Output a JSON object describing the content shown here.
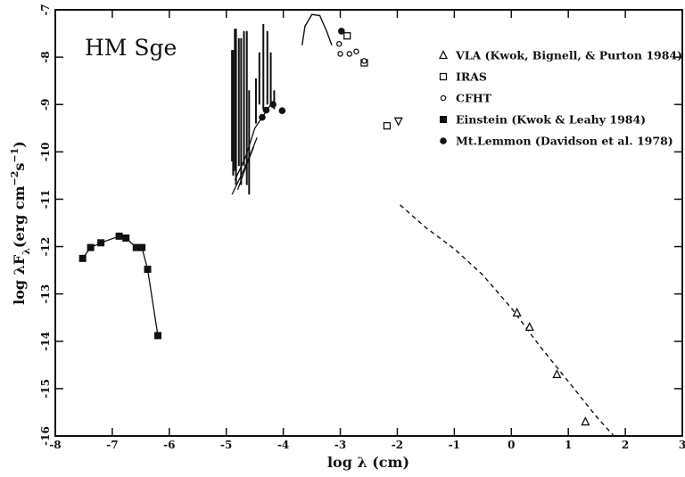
{
  "chart_data": {
    "type": "scatter",
    "title": "HM Sge",
    "xlabel": "log λ (cm)",
    "ylabel": "log λF",
    "ylabel_sub": "λ",
    "ylabel_units_open": "(erg cm",
    "ylabel_exp1": "−2",
    "ylabel_mid": "s",
    "ylabel_exp2": "−1",
    "ylabel_close": ")",
    "xlim": [
      -8,
      3
    ],
    "ylim": [
      -16,
      -7
    ],
    "xticks": [
      {
        "value": -8,
        "label": "-8"
      },
      {
        "value": -7,
        "label": "-7"
      },
      {
        "value": -6,
        "label": "-6"
      },
      {
        "value": -5,
        "label": "-5"
      },
      {
        "value": -4,
        "label": "-4"
      },
      {
        "value": -3,
        "label": "-3"
      },
      {
        "value": -2,
        "label": "-2"
      },
      {
        "value": -1,
        "label": "-1"
      },
      {
        "value": 0,
        "label": "0"
      },
      {
        "value": 1,
        "label": "1"
      },
      {
        "value": 2,
        "label": "2"
      },
      {
        "value": 3,
        "label": "3"
      }
    ],
    "yticks": [
      {
        "value": -7,
        "label": "-7"
      },
      {
        "value": -8,
        "label": "-8"
      },
      {
        "value": -9,
        "label": "-9"
      },
      {
        "value": -10,
        "label": "-10"
      },
      {
        "value": -11,
        "label": "-11"
      },
      {
        "value": -12,
        "label": "-12"
      },
      {
        "value": -13,
        "label": "-13"
      },
      {
        "value": -14,
        "label": "-14"
      },
      {
        "value": -15,
        "label": "-15"
      },
      {
        "value": -16,
        "label": "-16"
      }
    ],
    "legend_position": "top-right",
    "series": [
      {
        "name": "VLA (Kwok, Bignell, & Purton 1984)",
        "marker": "triangle-open",
        "points": [
          [
            0.1,
            -13.4
          ],
          [
            0.32,
            -13.7
          ],
          [
            0.8,
            -14.7
          ],
          [
            1.3,
            -15.7
          ]
        ]
      },
      {
        "name": "IRAS",
        "marker": "square-open",
        "points": [
          [
            -2.88,
            -7.55
          ],
          [
            -2.58,
            -8.12
          ],
          [
            -2.18,
            -9.45
          ]
        ]
      },
      {
        "name": "CFHT",
        "marker": "circle-open",
        "points": [
          [
            -3.02,
            -7.72
          ],
          [
            -3.0,
            -7.93
          ],
          [
            -2.84,
            -7.93
          ],
          [
            -2.72,
            -7.88
          ],
          [
            -2.58,
            -8.08
          ]
        ]
      },
      {
        "name": "Einstein (Kwok & Leahy 1984)",
        "marker": "square-filled",
        "connected": true,
        "points": [
          [
            -7.52,
            -12.25
          ],
          [
            -7.38,
            -12.02
          ],
          [
            -7.2,
            -11.92
          ],
          [
            -6.88,
            -11.78
          ],
          [
            -6.76,
            -11.82
          ],
          [
            -6.58,
            -12.02
          ],
          [
            -6.48,
            -12.02
          ],
          [
            -6.38,
            -12.48
          ],
          [
            -6.2,
            -13.88
          ]
        ]
      },
      {
        "name": "Mt.Lemmon (Davidson et al. 1978)",
        "marker": "circle-filled",
        "points": [
          [
            -2.98,
            -7.45
          ],
          [
            -4.18,
            -9.0
          ],
          [
            -4.3,
            -9.12
          ],
          [
            -4.37,
            -9.27
          ],
          [
            -4.02,
            -9.13
          ]
        ]
      }
    ],
    "extra_points": [
      {
        "marker": "triangle-down-open",
        "point": [
          -1.98,
          -9.35
        ]
      }
    ],
    "dashed_curve": [
      [
        -1.95,
        -11.12
      ],
      [
        -1.5,
        -11.6
      ],
      [
        -1.0,
        -12.05
      ],
      [
        -0.5,
        -12.6
      ],
      [
        0.0,
        -13.3
      ],
      [
        0.5,
        -14.1
      ],
      [
        1.0,
        -14.85
      ],
      [
        1.5,
        -15.6
      ],
      [
        1.8,
        -16.0
      ]
    ],
    "spectrum_curve": [
      [
        -3.67,
        -7.75
      ],
      [
        -3.62,
        -7.35
      ],
      [
        -3.5,
        -7.1
      ],
      [
        -3.36,
        -7.12
      ],
      [
        -3.24,
        -7.45
      ],
      [
        -3.15,
        -7.75
      ]
    ],
    "spectra_lines": [
      [
        -4.9,
        -10.2,
        -7.85
      ],
      [
        -4.88,
        -10.5,
        -7.85
      ],
      [
        -4.85,
        -10.4,
        -7.4
      ],
      [
        -4.83,
        -10.7,
        -7.4
      ],
      [
        -4.78,
        -10.3,
        -7.6
      ],
      [
        -4.74,
        -10.7,
        -7.6
      ],
      [
        -4.69,
        -10.3,
        -7.45
      ],
      [
        -4.64,
        -10.7,
        -7.45
      ],
      [
        -4.6,
        -10.9,
        -8.7
      ],
      [
        -4.48,
        -9.4,
        -8.45
      ],
      [
        -4.42,
        -9.0,
        -7.9
      ],
      [
        -4.35,
        -9.1,
        -7.3
      ],
      [
        -4.28,
        -9.0,
        -7.45
      ],
      [
        -4.22,
        -9.0,
        -7.9
      ],
      [
        -4.16,
        -9.1,
        -8.7
      ]
    ],
    "spectra_segments": [
      [
        [
          -4.9,
          -10.9
        ],
        [
          -4.7,
          -10.4
        ],
        [
          -4.56,
          -10.0
        ],
        [
          -4.46,
          -9.7
        ]
      ],
      [
        [
          -4.85,
          -10.6
        ],
        [
          -4.66,
          -10.1
        ],
        [
          -4.5,
          -9.5
        ],
        [
          -4.36,
          -9.25
        ],
        [
          -4.22,
          -9.0
        ]
      ],
      [
        [
          -4.8,
          -10.8
        ],
        [
          -4.62,
          -10.2
        ],
        [
          -4.52,
          -9.9
        ]
      ]
    ]
  }
}
